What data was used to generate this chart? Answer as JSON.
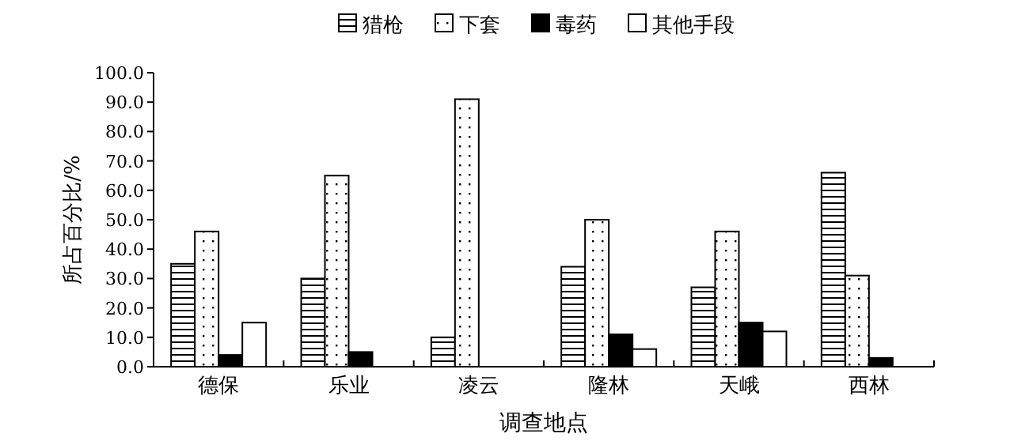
{
  "chart_data": {
    "type": "bar",
    "xlabel": "调查地点",
    "ylabel": "所占百分比/%",
    "categories": [
      "德保",
      "乐业",
      "凌云",
      "隆林",
      "天峨",
      "西林"
    ],
    "series": [
      {
        "name": "猎枪",
        "color": "#000000",
        "values": [
          35,
          30,
          10,
          34,
          27,
          66
        ]
      },
      {
        "name": "下套",
        "color": "#000000",
        "values": [
          46,
          65,
          91,
          50,
          46,
          31
        ]
      },
      {
        "name": "毒药",
        "color": "#000000",
        "values": [
          4,
          5,
          0,
          11,
          15,
          3
        ]
      },
      {
        "name": "其他手段",
        "color": "#ffffff",
        "values": [
          15,
          0,
          0,
          6,
          12,
          0
        ]
      }
    ],
    "ylim": [
      0,
      100
    ],
    "yticks": [
      {
        "value": 0,
        "label": "0.0"
      },
      {
        "value": 10,
        "label": "10.0"
      },
      {
        "value": 20,
        "label": "20.0"
      },
      {
        "value": 30,
        "label": "30.0"
      },
      {
        "value": 40,
        "label": "40.0"
      },
      {
        "value": 50,
        "label": "50.0"
      },
      {
        "value": 60,
        "label": "60.0"
      },
      {
        "value": 70,
        "label": "70.0"
      },
      {
        "value": 80,
        "label": "80.0"
      },
      {
        "value": 90,
        "label": "90.0"
      },
      {
        "value": 100,
        "label": "100.0"
      }
    ],
    "legend": "top",
    "grid": false
  }
}
